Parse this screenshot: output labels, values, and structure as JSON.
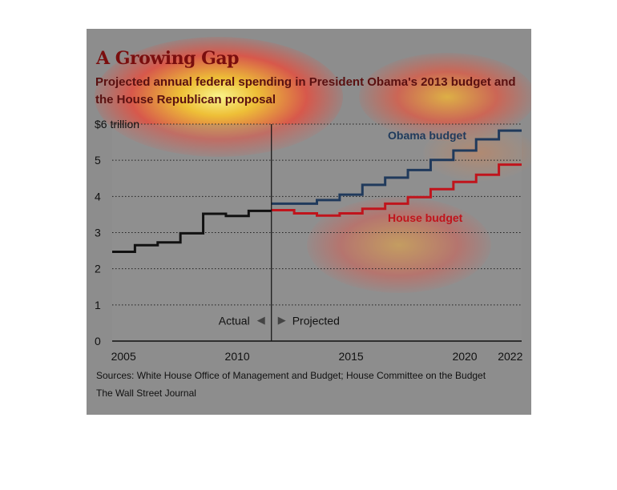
{
  "chart_data": {
    "type": "line",
    "title": "A Growing Gap",
    "subtitle": "Projected annual federal spending in President Obama's 2013 budget and the House Republican proposal",
    "ylabel_top": "$6 trillion",
    "x_ticks": [
      "2005",
      "2010",
      "2015",
      "2020",
      "2022"
    ],
    "y_ticks": [
      "0",
      "1",
      "2",
      "3",
      "4",
      "5"
    ],
    "xlim": [
      2004.5,
      2022.5
    ],
    "ylim": [
      0,
      6
    ],
    "grid": true,
    "divider_year": 2011.5,
    "actual_label": "Actual",
    "projected_label": "Projected",
    "series": [
      {
        "name": "Actual",
        "color": "#111111",
        "x": [
          2005,
          2006,
          2007,
          2008,
          2009,
          2010,
          2011
        ],
        "y": [
          2.47,
          2.65,
          2.73,
          2.98,
          3.52,
          3.46,
          3.6
        ]
      },
      {
        "name": "Obama budget",
        "color": "#203a5c",
        "x": [
          2012,
          2013,
          2014,
          2015,
          2016,
          2017,
          2018,
          2019,
          2020,
          2021,
          2022
        ],
        "y": [
          3.8,
          3.8,
          3.9,
          4.05,
          4.32,
          4.52,
          4.73,
          5.01,
          5.27,
          5.58,
          5.82
        ]
      },
      {
        "name": "House budget",
        "color": "#c0141c",
        "x": [
          2012,
          2013,
          2014,
          2015,
          2016,
          2017,
          2018,
          2019,
          2020,
          2021,
          2022
        ],
        "y": [
          3.62,
          3.53,
          3.47,
          3.53,
          3.66,
          3.8,
          3.98,
          4.2,
          4.4,
          4.6,
          4.88
        ]
      }
    ]
  },
  "footer": {
    "sources": "Sources: White House Office of Management and Budget; House Committee on the Budget",
    "publication": "The Wall Street Journal"
  }
}
